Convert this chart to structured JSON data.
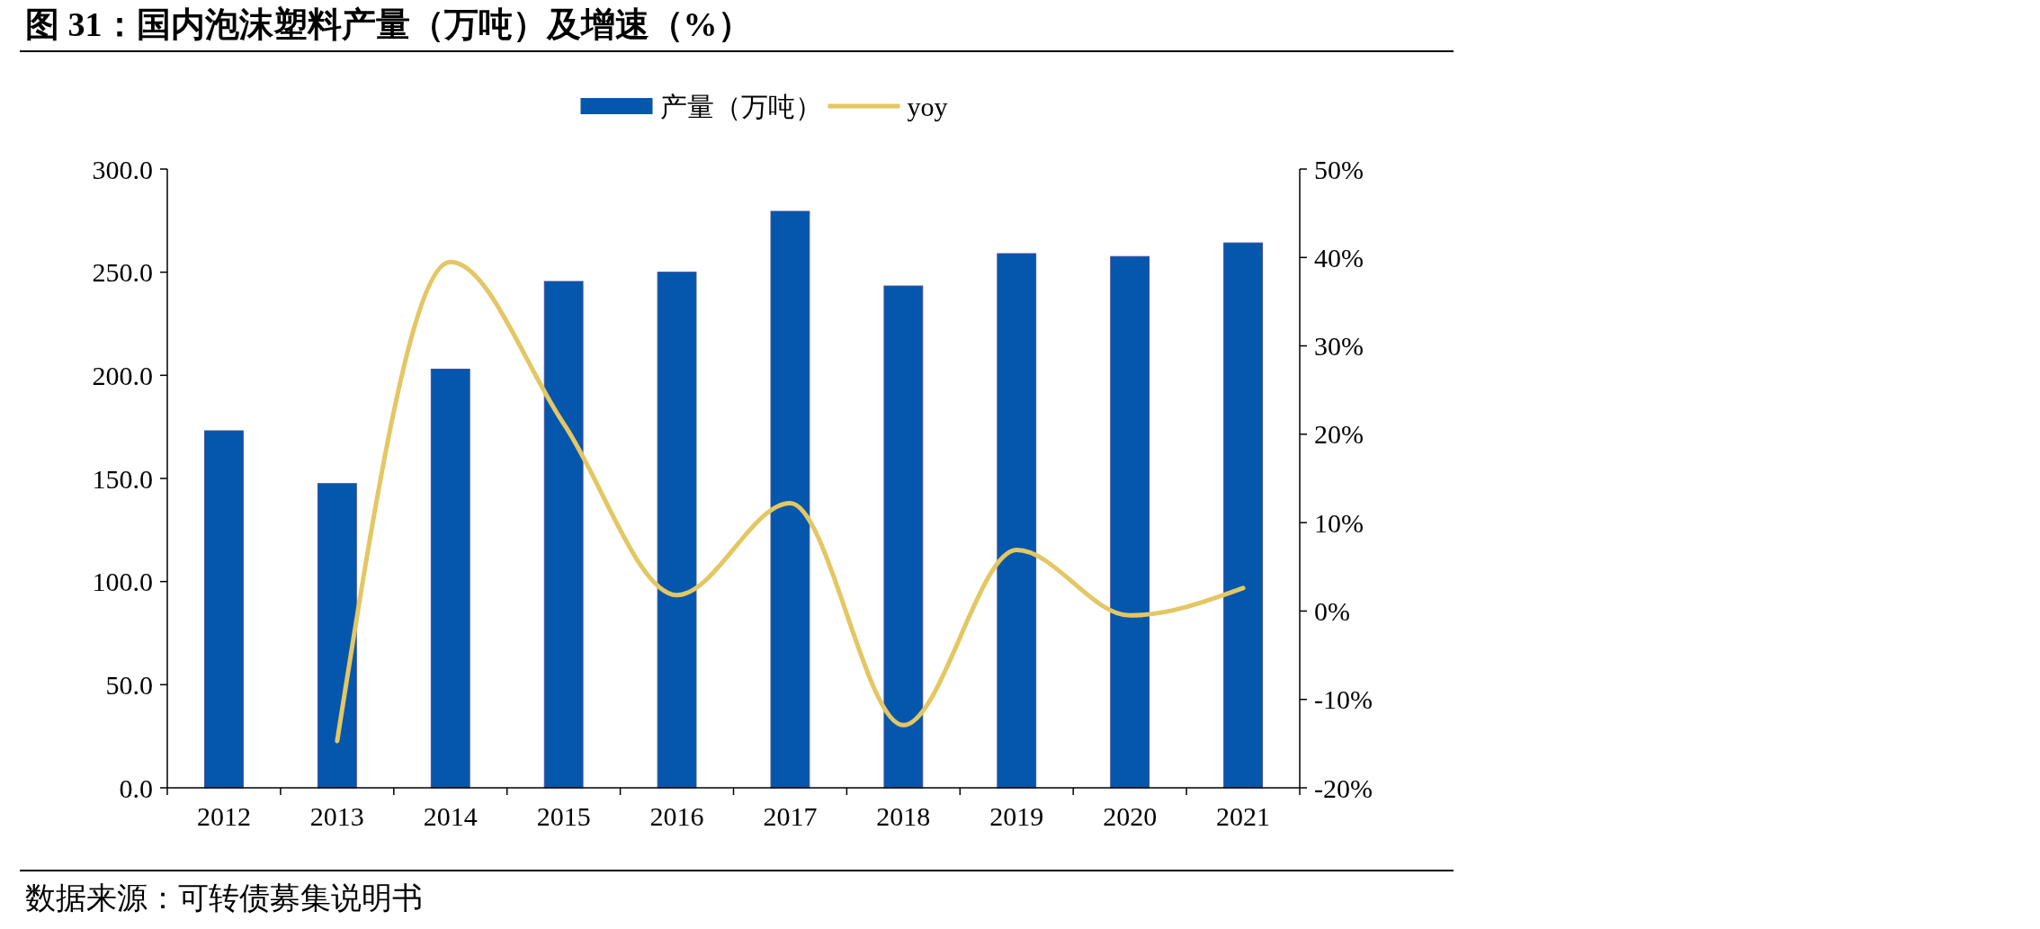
{
  "chart_data": {
    "type": "bar",
    "title": "图 31：国内泡沫塑料产量（万吨）及增速（%）",
    "categories": [
      "2012",
      "2013",
      "2014",
      "2015",
      "2016",
      "2017",
      "2018",
      "2019",
      "2020",
      "2021"
    ],
    "series": [
      {
        "name": "产量（万吨）",
        "color": "#0457ac",
        "values": [
          173.1,
          147.5,
          203,
          245.5,
          250,
          279.5,
          243.3,
          259,
          257.6,
          264.2
        ]
      },
      {
        "name": "yoy",
        "type": "line",
        "axis": "y2",
        "color": "#e4c763",
        "values": [
          null,
          -14.7,
          39.5,
          21.2,
          1.8,
          12.2,
          -12.9,
          6.9,
          -0.5,
          2.6
        ]
      }
    ],
    "ylim": [
      0,
      300
    ],
    "yticks": [
      {
        "value": 0,
        "label": "0.0"
      },
      {
        "value": 50,
        "label": "50.0"
      },
      {
        "value": 100,
        "label": "100.0"
      },
      {
        "value": 150,
        "label": "150.0"
      },
      {
        "value": 200,
        "label": "200.0"
      },
      {
        "value": 250,
        "label": "250.0"
      },
      {
        "value": 300,
        "label": "300.0"
      }
    ],
    "y2lim": [
      -20,
      50
    ],
    "y2ticks": [
      {
        "value": -20,
        "label": "-20%"
      },
      {
        "value": -10,
        "label": "-10%"
      },
      {
        "value": 0,
        "label": "0%"
      },
      {
        "value": 10,
        "label": "10%"
      },
      {
        "value": 20,
        "label": "20%"
      },
      {
        "value": 30,
        "label": "30%"
      },
      {
        "value": 40,
        "label": "40%"
      },
      {
        "value": 50,
        "label": "50%"
      }
    ],
    "legend": "top",
    "grid": false,
    "marker": "none",
    "line_style": "solid",
    "annotations": [
      "数据来源：可转债募集说明书"
    ]
  }
}
